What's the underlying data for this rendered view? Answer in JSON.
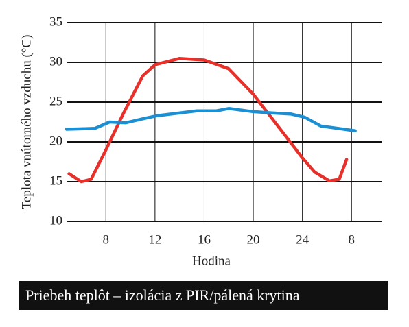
{
  "chart_data": {
    "type": "line",
    "x_label": "Hodina",
    "y_label": "Teplota vnútorného vzduchu (°C)",
    "caption": "Priebeh teplôt – izolácia z PIR/pálená krytina",
    "xlim": [
      4.8,
      30.5
    ],
    "ylim": [
      10,
      35
    ],
    "xticks": [
      8,
      12,
      16,
      20,
      24,
      {
        "value": 28,
        "label": "8"
      }
    ],
    "yticks": [
      10,
      15,
      20,
      25,
      30,
      35
    ],
    "grid": true,
    "series": [
      {
        "color": "#e8302a",
        "x": [
          5.0,
          6.0,
          6.8,
          8.0,
          9.4,
          11.0,
          12.0,
          14.0,
          16.0,
          18.0,
          20.0,
          22.0,
          24.0,
          25.0,
          26.2,
          27.0,
          27.6
        ],
        "values": [
          16,
          15.0,
          15.3,
          19,
          23.5,
          28.3,
          29.7,
          30.5,
          30.3,
          29.2,
          26,
          22,
          18,
          16.2,
          15.1,
          15.3,
          17.8
        ]
      },
      {
        "color": "#1b8fd2",
        "x": [
          4.8,
          7.1,
          8.3,
          9.6,
          11.0,
          12.2,
          15.4,
          17.0,
          18.0,
          20.0,
          22.0,
          23.1,
          24.2,
          25.5,
          28.3
        ],
        "values": [
          21.6,
          21.7,
          22.5,
          22.4,
          22.9,
          23.3,
          23.9,
          23.9,
          24.2,
          23.8,
          23.6,
          23.5,
          23.1,
          22.0,
          21.4
        ]
      }
    ]
  }
}
